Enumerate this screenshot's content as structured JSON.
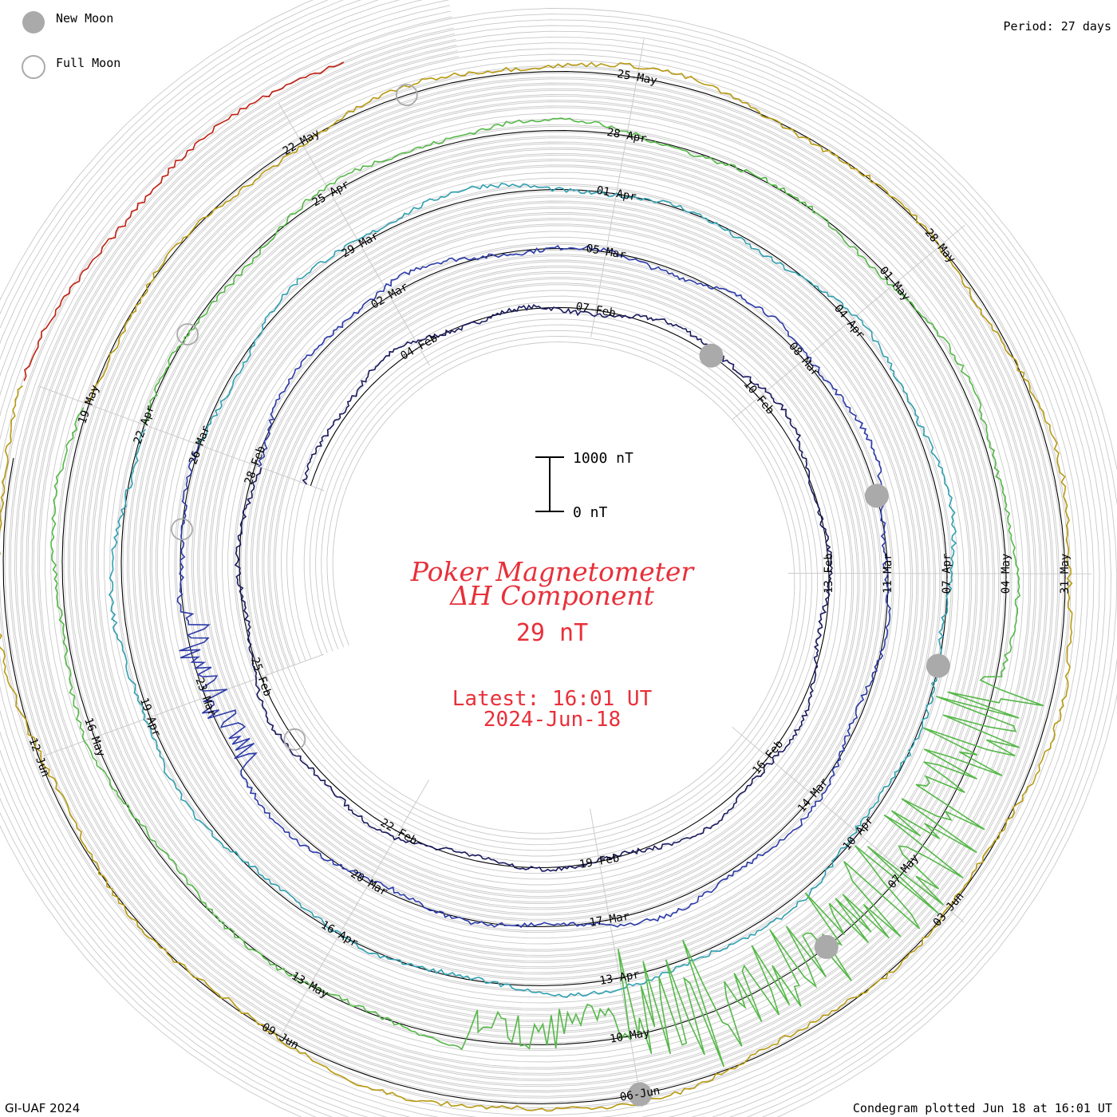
{
  "header": {
    "legend_new_moon": "New Moon",
    "legend_full_moon": "Full Moon",
    "period": "Period: 27 days"
  },
  "footer": {
    "credit": "GI-UAF 2024",
    "plotted": "Condegram plotted Jun 18 at 16:01 UT"
  },
  "center": {
    "title_line1": "Poker Magnetometer",
    "title_line2": "ΔH Component",
    "value": "29 nT",
    "latest": "Latest: 16:01 UT",
    "date": "2024-Jun-18",
    "scale_top": "1000 nT",
    "scale_bottom": "0 nT"
  },
  "colors": {
    "title": "#e8303a",
    "moon_fill": "#aaaaaa",
    "grid": "#c8c8c8",
    "baseline": "#000000"
  },
  "chart_data": {
    "type": "spiral-condegram",
    "period_days": 27,
    "date_range": [
      "2024-02-01",
      "2024-06-18"
    ],
    "series": [
      {
        "turn": 1,
        "color": "#1a1a5e",
        "date_labels": [
          "04-Feb",
          "07-Feb",
          "10-Feb",
          "13-Feb",
          "16-Feb",
          "19-Feb",
          "22-Feb",
          "25-Feb",
          "28-Feb"
        ]
      },
      {
        "turn": 2,
        "color": "#2b3aa8",
        "date_labels": [
          "02-Mar",
          "05-Mar",
          "08-Mar",
          "11-Mar",
          "14-Mar",
          "17-Mar",
          "20-Mar",
          "23-Mar",
          "26-Mar"
        ]
      },
      {
        "turn": 3,
        "color": "#2fa0b0",
        "date_labels": [
          "29-Mar",
          "01-Apr",
          "04-Apr",
          "07-Apr",
          "10-Apr",
          "13-Apr",
          "16-Apr",
          "19-Apr",
          "22-Apr"
        ]
      },
      {
        "turn": 4,
        "color": "#55b848",
        "date_labels": [
          "25-Apr",
          "28-Apr",
          "01-May",
          "04-May",
          "07-May",
          "10-May",
          "13-May",
          "16-May",
          "19-May"
        ]
      },
      {
        "turn": 5,
        "color": "#b89a10",
        "date_labels": [
          "22-May",
          "25-May",
          "28-May",
          "31-May",
          "03-Jun",
          "06-Jun",
          "09-Jun",
          "12-Jun"
        ]
      },
      {
        "turn": 6,
        "color": "#c02010",
        "date_labels": []
      }
    ],
    "new_moons": [
      "2024-02-09",
      "2024-03-10",
      "2024-04-08",
      "2024-05-08",
      "2024-06-06"
    ],
    "full_moons": [
      "2024-02-24",
      "2024-03-25",
      "2024-04-23",
      "2024-05-23"
    ]
  }
}
